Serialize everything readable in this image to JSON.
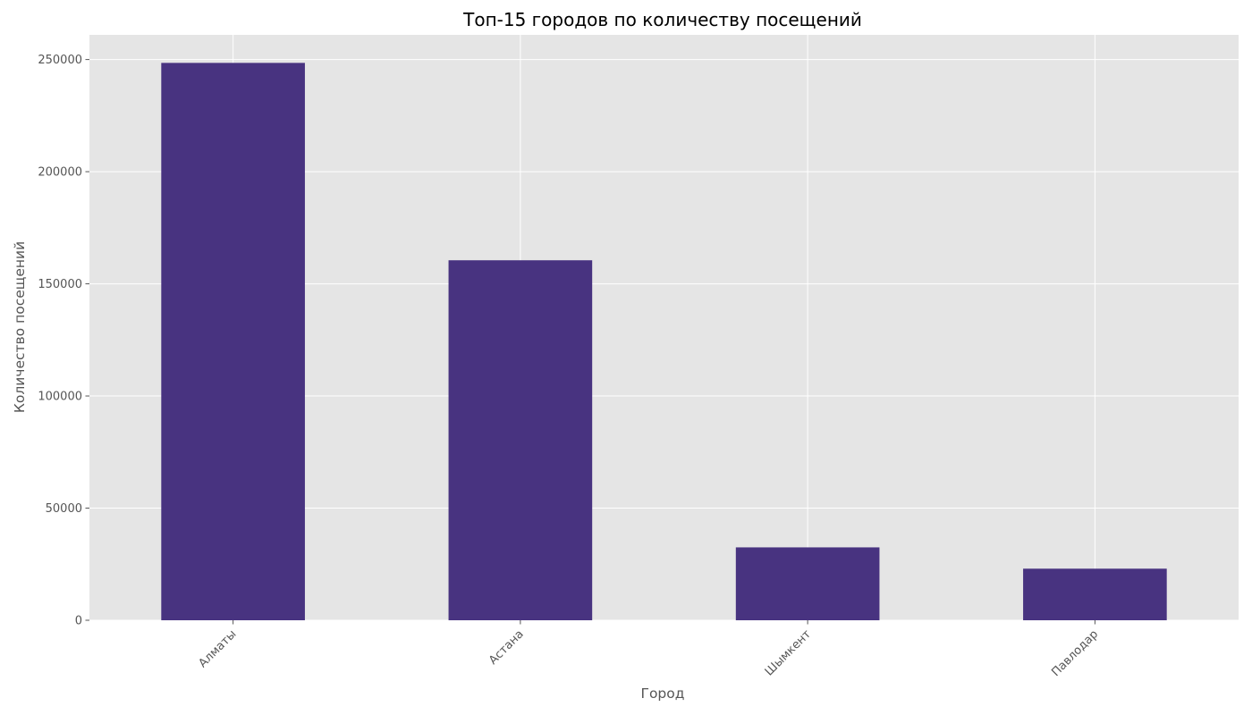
{
  "chart_data": {
    "type": "bar",
    "title": "Топ-15 городов по количеству посещений",
    "xlabel": "Город",
    "ylabel": "Количество посещений",
    "categories": [
      "Алматы",
      "Астана",
      "Шымкент",
      "Павлодар"
    ],
    "values": [
      248500,
      160500,
      32500,
      23000
    ],
    "ylim": [
      0,
      261000
    ],
    "yticks": [
      0,
      50000,
      100000,
      150000,
      200000,
      250000
    ],
    "grid": true,
    "legend": "none",
    "colors": {
      "bar": "#483380",
      "plot_background": "#e5e5e5",
      "grid": "#ffffff"
    }
  }
}
